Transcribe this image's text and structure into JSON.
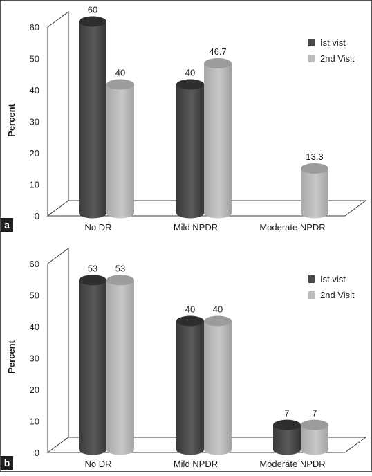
{
  "chart_data": [
    {
      "panel_label": "a",
      "type": "bar",
      "ylabel": "Percent",
      "ylim": [
        0,
        60
      ],
      "yticks": [
        "0",
        "10",
        "20",
        "30",
        "40",
        "50",
        "60"
      ],
      "categories": [
        "No DR",
        "Mild NPDR",
        "Moderate NPDR"
      ],
      "series": [
        {
          "name": "Ist vist",
          "values": [
            60,
            40,
            0
          ],
          "labels": [
            "60",
            "40",
            ""
          ]
        },
        {
          "name": "2nd Visit",
          "values": [
            40,
            46.7,
            13.3
          ],
          "labels": [
            "40",
            "46.7",
            "13.3"
          ]
        }
      ],
      "colors": [
        "#4a4a4a",
        "#bdbdbd"
      ],
      "legend": "top-right"
    },
    {
      "panel_label": "b",
      "type": "bar",
      "ylabel": "Percent",
      "ylim": [
        0,
        60
      ],
      "yticks": [
        "0",
        "10",
        "20",
        "30",
        "40",
        "50",
        "60"
      ],
      "categories": [
        "No DR",
        "Mild NPDR",
        "Moderate NPDR"
      ],
      "series": [
        {
          "name": "Ist vist",
          "values": [
            53,
            40,
            7
          ],
          "labels": [
            "53",
            "40",
            "7"
          ]
        },
        {
          "name": "2nd Visit",
          "values": [
            53,
            40,
            7
          ],
          "labels": [
            "53",
            "40",
            "7"
          ]
        }
      ],
      "colors": [
        "#4a4a4a",
        "#bdbdbd"
      ],
      "legend": "top-right"
    }
  ]
}
